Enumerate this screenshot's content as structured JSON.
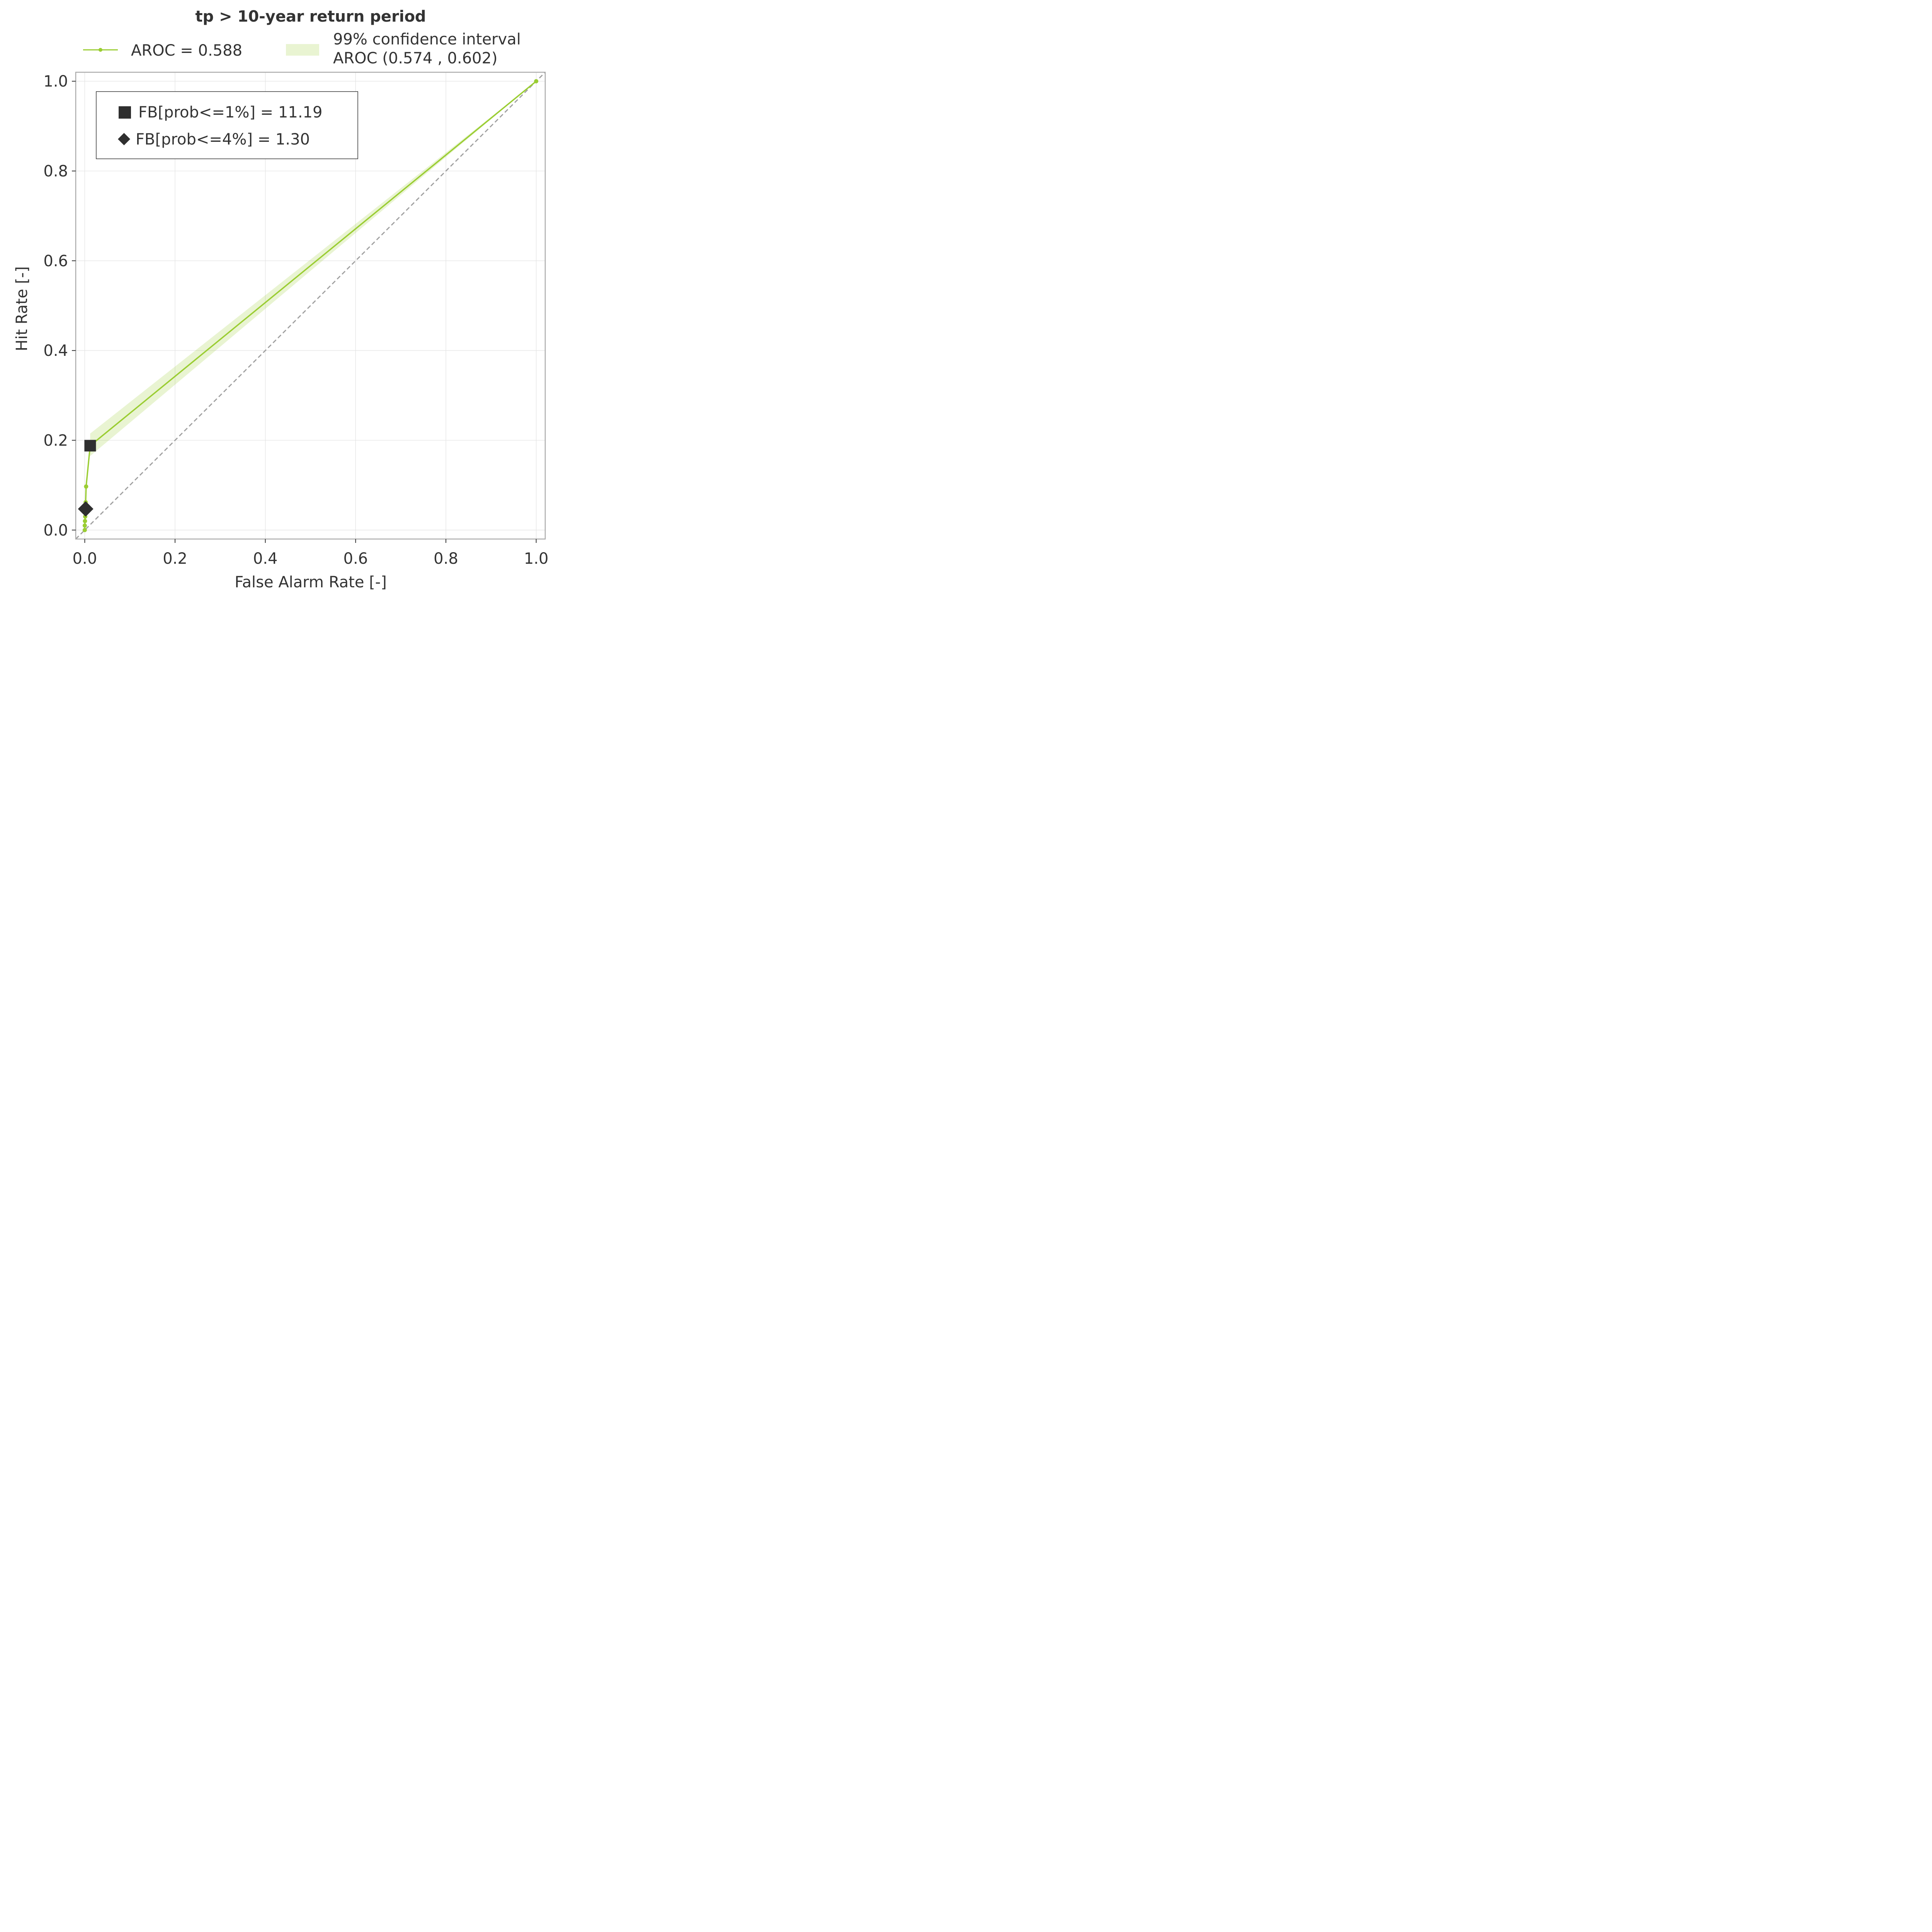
{
  "chart_data": {
    "type": "line",
    "title": "tp > 10-year return period",
    "xlabel": "False Alarm Rate [-]",
    "ylabel": "Hit Rate [-]",
    "xlim": [
      -0.02,
      1.02
    ],
    "ylim": [
      -0.02,
      1.02
    ],
    "xticks": [
      "0.0",
      "0.2",
      "0.4",
      "0.6",
      "0.8",
      "1.0"
    ],
    "yticks": [
      "0.0",
      "0.2",
      "0.4",
      "0.6",
      "0.8",
      "1.0"
    ],
    "grid": true,
    "series": [
      {
        "name": "AROC = 0.588",
        "color": "#9ACD32",
        "x": [
          0.0,
          0.0,
          0.0005,
          0.001,
          0.0015,
          0.002,
          0.003,
          0.012,
          1.0
        ],
        "y": [
          0.0,
          0.01,
          0.02,
          0.03,
          0.045,
          0.062,
          0.097,
          0.188,
          1.0
        ]
      }
    ],
    "confidence_band": {
      "name": "99% confidence interval\nAROC (0.574 , 0.602)",
      "label_line1": "99% confidence interval",
      "label_line2": "AROC (0.574 , 0.602)",
      "color": "#9ACD32",
      "x": [
        0.012,
        1.0
      ],
      "upper": [
        0.215,
        1.0
      ],
      "lower": [
        0.165,
        1.0
      ]
    },
    "reference_line": {
      "x": [
        0.0,
        1.0
      ],
      "y": [
        0.0,
        1.0
      ],
      "style": "dashed",
      "color": "#a0a0a0"
    },
    "markers": [
      {
        "shape": "square",
        "label": "FB[prob<=1%] = 11.19",
        "x": 0.012,
        "y": 0.188
      },
      {
        "shape": "diamond",
        "label": "FB[prob<=4%] = 1.30",
        "x": 0.002,
        "y": 0.047
      }
    ],
    "legend_placement": "top-center",
    "marker_legend_placement": "upper-left"
  }
}
